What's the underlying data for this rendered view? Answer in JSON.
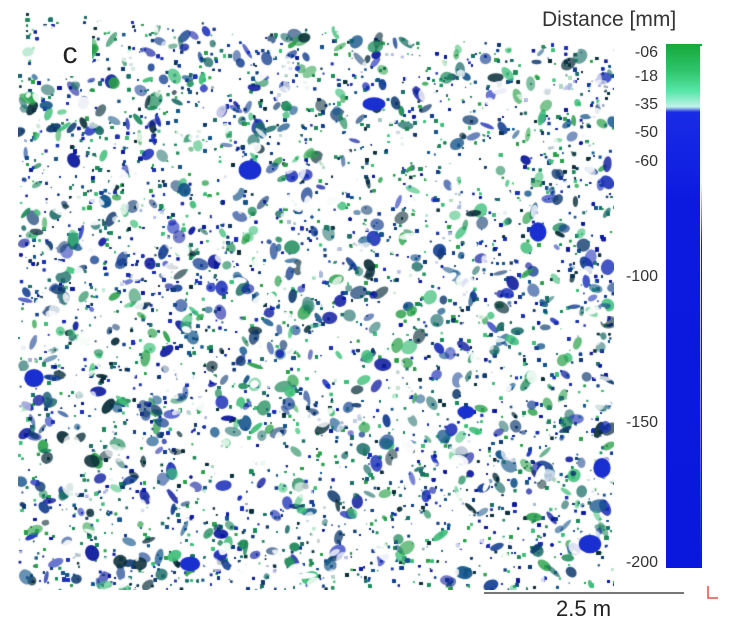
{
  "panel_label": "c",
  "legend": {
    "title": "Distance [mm]",
    "ticks": [
      "-06",
      "-18",
      "-35",
      "-50",
      "-60",
      "-100",
      "-150",
      "-200"
    ],
    "colors": {
      "top": "#16a83a",
      "mid": "#58e6a8",
      "light": "#bff2e8",
      "bottom": "#0c1ae0"
    }
  },
  "scale_bar": {
    "label": "2.5 m"
  },
  "point_cloud_colors": [
    "#0d1a9e",
    "#1b2fb8",
    "#0f3a6e",
    "#14558a",
    "#1e8a5a",
    "#2aa04a",
    "#1f6f6a",
    "#0b2f3a",
    "#3fbf7a",
    "#123d8f"
  ]
}
